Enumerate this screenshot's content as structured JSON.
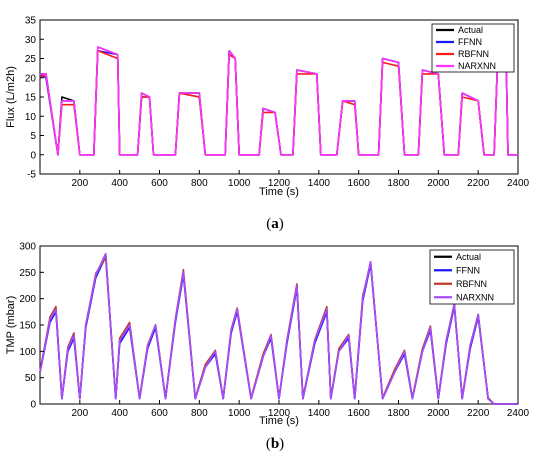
{
  "chart_data": [
    {
      "type": "line",
      "panel_label": "a",
      "xlabel": "Time (s)",
      "ylabel": "Flux (L/m2h)",
      "xlim": [
        0,
        2400
      ],
      "ylim": [
        -5,
        35
      ],
      "xticks": [
        200,
        400,
        600,
        800,
        1000,
        1200,
        1400,
        1600,
        1800,
        2000,
        2200,
        2400
      ],
      "yticks": [
        -5,
        0,
        5,
        10,
        15,
        20,
        25,
        30,
        35
      ],
      "grid": false,
      "legend_position": "top-right",
      "colors": {
        "Actual": "#000000",
        "FFNN": "#1a1aff",
        "RBFNN": "#ff1a1a",
        "NARXNN": "#ff33ff"
      },
      "series": [
        {
          "name": "Actual",
          "x": [
            0,
            30,
            90,
            110,
            170,
            200,
            270,
            290,
            390,
            400,
            490,
            510,
            550,
            570,
            680,
            700,
            800,
            830,
            930,
            950,
            980,
            1000,
            1100,
            1120,
            1180,
            1210,
            1270,
            1290,
            1390,
            1410,
            1490,
            1520,
            1580,
            1600,
            1700,
            1720,
            1800,
            1830,
            1900,
            1920,
            2000,
            2030,
            2100,
            2120,
            2200,
            2230,
            2280,
            2300,
            2340,
            2350,
            2400
          ],
          "y": [
            21,
            21,
            0,
            15,
            14,
            0,
            0,
            28,
            26,
            0,
            0,
            16,
            15,
            0,
            0,
            16,
            16,
            0,
            0,
            27,
            25,
            0,
            0,
            12,
            11,
            0,
            0,
            22,
            21,
            0,
            0,
            14,
            14,
            0,
            0,
            25,
            24,
            0,
            0,
            22,
            21,
            0,
            0,
            16,
            14,
            0,
            0,
            28,
            26,
            0,
            0
          ]
        },
        {
          "name": "FFNN",
          "x": [
            0,
            30,
            90,
            110,
            170,
            200,
            270,
            290,
            390,
            400,
            490,
            510,
            550,
            570,
            680,
            700,
            800,
            830,
            930,
            950,
            980,
            1000,
            1100,
            1120,
            1180,
            1210,
            1270,
            1290,
            1390,
            1410,
            1490,
            1520,
            1580,
            1600,
            1700,
            1720,
            1800,
            1830,
            1900,
            1920,
            2000,
            2030,
            2100,
            2120,
            2200,
            2230,
            2280,
            2300,
            2340,
            2350,
            2400
          ],
          "y": [
            21,
            20,
            0,
            14,
            14,
            0,
            0,
            27,
            26,
            0,
            0,
            15,
            15,
            0,
            0,
            16,
            15,
            0,
            0,
            27,
            25,
            0,
            0,
            12,
            11,
            0,
            0,
            22,
            21,
            0,
            0,
            14,
            14,
            0,
            0,
            25,
            24,
            0,
            0,
            22,
            21,
            0,
            0,
            16,
            14,
            0,
            0,
            28,
            26,
            0,
            0
          ]
        },
        {
          "name": "RBFNN",
          "x": [
            0,
            30,
            90,
            110,
            170,
            200,
            270,
            290,
            390,
            400,
            490,
            510,
            550,
            570,
            680,
            700,
            800,
            830,
            930,
            950,
            980,
            1000,
            1100,
            1120,
            1180,
            1210,
            1270,
            1290,
            1390,
            1410,
            1490,
            1520,
            1580,
            1600,
            1700,
            1720,
            1800,
            1830,
            1900,
            1920,
            2000,
            2030,
            2100,
            2120,
            2200,
            2230,
            2280,
            2300,
            2340,
            2350,
            2400
          ],
          "y": [
            20,
            21,
            0,
            13,
            13,
            0,
            0,
            27,
            25,
            0,
            0,
            15,
            15,
            0,
            0,
            16,
            15,
            0,
            0,
            26,
            25,
            0,
            0,
            11,
            11,
            0,
            0,
            21,
            21,
            0,
            0,
            14,
            13,
            0,
            0,
            24,
            23,
            0,
            0,
            21,
            21,
            0,
            0,
            15,
            14,
            0,
            0,
            27,
            26,
            0,
            0
          ]
        },
        {
          "name": "NARXNN",
          "x": [
            0,
            30,
            90,
            110,
            170,
            200,
            270,
            290,
            390,
            400,
            490,
            510,
            550,
            570,
            680,
            700,
            800,
            830,
            930,
            950,
            980,
            1000,
            1100,
            1120,
            1180,
            1210,
            1270,
            1290,
            1390,
            1410,
            1490,
            1520,
            1580,
            1600,
            1700,
            1720,
            1800,
            1830,
            1900,
            1920,
            2000,
            2030,
            2100,
            2120,
            2200,
            2230,
            2280,
            2300,
            2340,
            2350,
            2400
          ],
          "y": [
            21,
            21,
            0,
            14,
            14,
            0,
            0,
            28,
            26,
            0,
            0,
            16,
            15,
            0,
            0,
            16,
            16,
            0,
            0,
            27,
            25,
            0,
            0,
            12,
            11,
            0,
            0,
            22,
            21,
            0,
            0,
            14,
            14,
            0,
            0,
            25,
            24,
            0,
            0,
            22,
            21,
            0,
            0,
            16,
            14,
            0,
            0,
            28,
            26,
            0,
            0
          ]
        }
      ]
    },
    {
      "type": "line",
      "panel_label": "b",
      "xlabel": "Time (s)",
      "ylabel": "TMP (mbar)",
      "xlim": [
        0,
        2400
      ],
      "ylim": [
        0,
        300
      ],
      "xticks": [
        200,
        400,
        600,
        800,
        1000,
        1200,
        1400,
        1600,
        1800,
        2000,
        2200,
        2400
      ],
      "yticks": [
        0,
        50,
        100,
        150,
        200,
        250,
        300
      ],
      "grid": false,
      "legend_position": "top-right",
      "colors": {
        "Actual": "#000000",
        "FFNN": "#1a1aff",
        "RBFNN": "#c0392b",
        "NARXNN": "#a64dff"
      },
      "series": [
        {
          "name": "Actual",
          "x": [
            0,
            50,
            80,
            110,
            140,
            170,
            200,
            230,
            280,
            330,
            380,
            400,
            450,
            500,
            540,
            580,
            630,
            680,
            720,
            780,
            830,
            880,
            920,
            960,
            990,
            1060,
            1120,
            1160,
            1200,
            1240,
            1290,
            1320,
            1380,
            1440,
            1460,
            1500,
            1550,
            1580,
            1620,
            1660,
            1720,
            1780,
            1830,
            1870,
            1920,
            1960,
            2000,
            2040,
            2080,
            2120,
            2160,
            2200,
            2250,
            2280,
            2300,
            2340,
            2400
          ],
          "y": [
            60,
            160,
            180,
            10,
            105,
            130,
            10,
            150,
            245,
            285,
            10,
            120,
            150,
            10,
            110,
            150,
            10,
            160,
            250,
            10,
            70,
            100,
            10,
            140,
            180,
            10,
            90,
            130,
            10,
            120,
            225,
            10,
            120,
            180,
            10,
            100,
            130,
            10,
            200,
            270,
            10,
            60,
            100,
            10,
            100,
            145,
            10,
            120,
            190,
            10,
            110,
            170,
            10,
            0,
            0,
            0,
            0
          ]
        },
        {
          "name": "FFNN",
          "x": [
            0,
            50,
            80,
            110,
            140,
            170,
            200,
            230,
            280,
            330,
            380,
            400,
            450,
            500,
            540,
            580,
            630,
            680,
            720,
            780,
            830,
            880,
            920,
            960,
            990,
            1060,
            1120,
            1160,
            1200,
            1240,
            1290,
            1320,
            1380,
            1440,
            1460,
            1500,
            1550,
            1580,
            1620,
            1660,
            1720,
            1780,
            1830,
            1870,
            1920,
            1960,
            2000,
            2040,
            2080,
            2120,
            2160,
            2200,
            2250,
            2280,
            2300,
            2340,
            2400
          ],
          "y": [
            60,
            155,
            175,
            10,
            100,
            125,
            10,
            145,
            240,
            280,
            10,
            115,
            145,
            10,
            105,
            145,
            10,
            155,
            245,
            10,
            70,
            95,
            10,
            135,
            175,
            10,
            90,
            125,
            10,
            115,
            220,
            10,
            115,
            175,
            10,
            100,
            125,
            10,
            195,
            265,
            10,
            60,
            95,
            10,
            100,
            140,
            10,
            115,
            185,
            10,
            105,
            165,
            10,
            0,
            0,
            0,
            0
          ]
        },
        {
          "name": "RBFNN",
          "x": [
            0,
            50,
            80,
            110,
            140,
            170,
            200,
            230,
            280,
            330,
            380,
            400,
            450,
            500,
            540,
            580,
            630,
            680,
            720,
            780,
            830,
            880,
            920,
            960,
            990,
            1060,
            1120,
            1160,
            1200,
            1240,
            1290,
            1320,
            1380,
            1440,
            1460,
            1500,
            1550,
            1580,
            1620,
            1660,
            1720,
            1780,
            1830,
            1870,
            1920,
            1960,
            2000,
            2040,
            2080,
            2120,
            2160,
            2200,
            2250,
            2280,
            2300,
            2340,
            2400
          ],
          "y": [
            62,
            165,
            185,
            12,
            108,
            135,
            12,
            150,
            248,
            278,
            12,
            125,
            155,
            12,
            112,
            150,
            12,
            162,
            255,
            12,
            75,
            102,
            12,
            142,
            182,
            12,
            95,
            132,
            12,
            122,
            228,
            12,
            122,
            185,
            12,
            105,
            132,
            12,
            205,
            268,
            12,
            65,
            102,
            12,
            105,
            148,
            12,
            122,
            188,
            12,
            112,
            168,
            12,
            0,
            0,
            0,
            0
          ]
        },
        {
          "name": "NARXNN",
          "x": [
            0,
            50,
            80,
            110,
            140,
            170,
            200,
            230,
            280,
            330,
            380,
            400,
            450,
            500,
            540,
            580,
            630,
            680,
            720,
            780,
            830,
            880,
            920,
            960,
            990,
            1060,
            1120,
            1160,
            1200,
            1240,
            1290,
            1320,
            1380,
            1440,
            1460,
            1500,
            1550,
            1580,
            1620,
            1660,
            1720,
            1780,
            1830,
            1870,
            1920,
            1960,
            2000,
            2040,
            2080,
            2120,
            2160,
            2200,
            2250,
            2280,
            2300,
            2340,
            2400
          ],
          "y": [
            60,
            160,
            180,
            10,
            105,
            130,
            10,
            150,
            245,
            285,
            10,
            120,
            150,
            10,
            110,
            150,
            10,
            160,
            250,
            10,
            70,
            100,
            10,
            140,
            180,
            10,
            90,
            130,
            10,
            120,
            225,
            10,
            120,
            180,
            10,
            100,
            130,
            10,
            200,
            270,
            10,
            60,
            100,
            10,
            100,
            145,
            10,
            120,
            190,
            10,
            110,
            170,
            10,
            0,
            0,
            0,
            0
          ]
        }
      ]
    }
  ]
}
